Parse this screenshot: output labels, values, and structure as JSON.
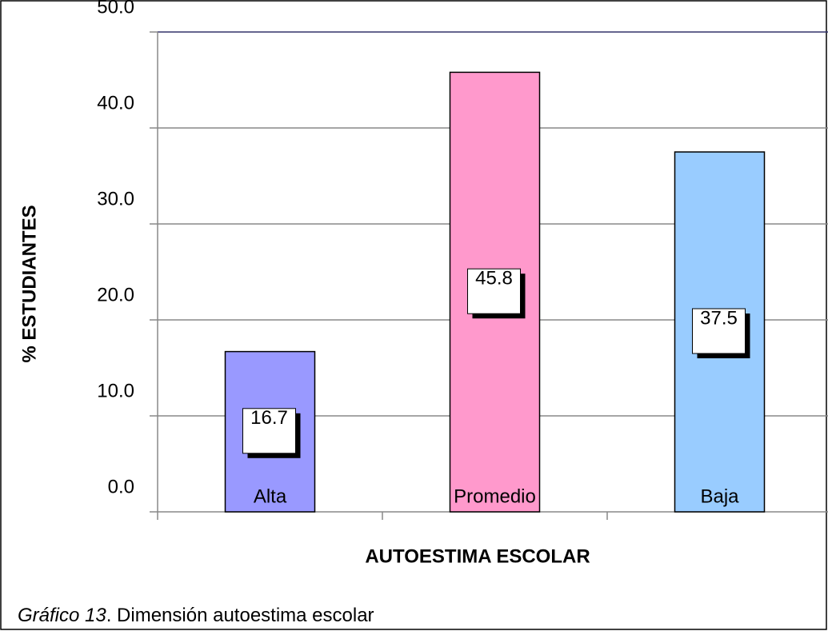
{
  "chart_data": {
    "type": "bar",
    "categories": [
      "Alta",
      "Promedio",
      "Baja"
    ],
    "values": [
      16.7,
      45.8,
      37.5
    ],
    "colors": [
      "#9999ff",
      "#ff99cc",
      "#99ccff"
    ],
    "xlabel": "AUTOESTIMA ESCOLAR",
    "ylabel": "% ESTUDIANTES",
    "ylim": [
      0,
      50
    ],
    "yticks": [
      {
        "value": 0,
        "label": "0.0"
      },
      {
        "value": 10,
        "label": "10.0"
      },
      {
        "value": 20,
        "label": "20.0"
      },
      {
        "value": 30,
        "label": "30.0"
      },
      {
        "value": 40,
        "label": "40.0"
      },
      {
        "value": 50,
        "label": "50.0"
      }
    ],
    "grid": true
  },
  "caption": {
    "label": "Gráfico 13",
    "text": ". Dimensión autoestima escolar"
  }
}
